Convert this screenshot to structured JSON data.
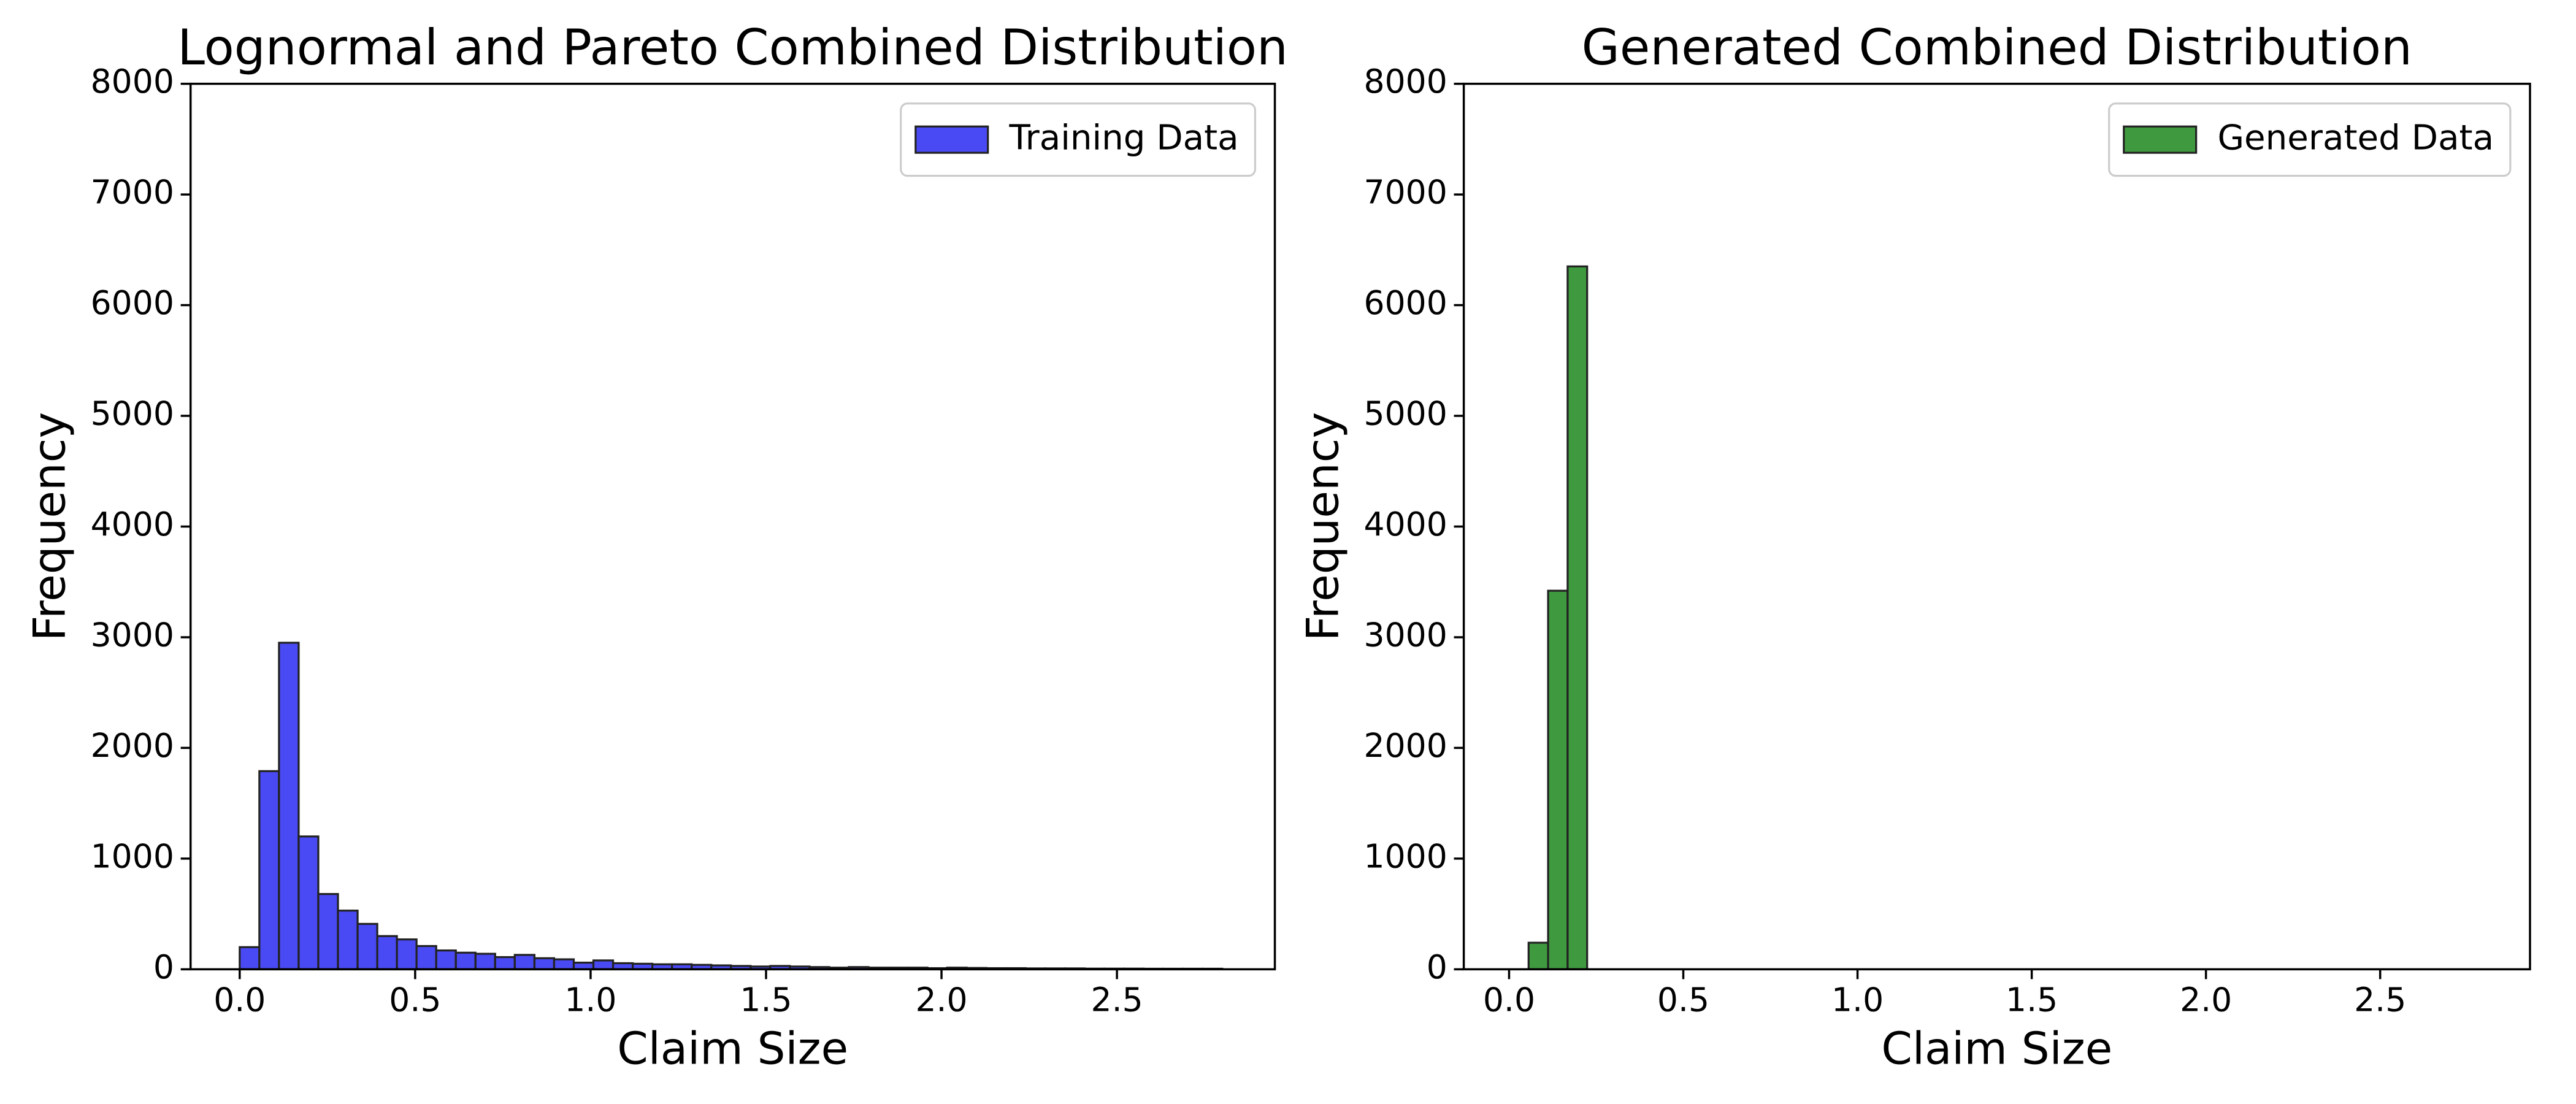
{
  "chart_data": [
    {
      "type": "histogram",
      "title": "Lognormal and Pareto Combined Distribution",
      "xlabel": "Claim Size",
      "ylabel": "Frequency",
      "bins": [
        0,
        0.056,
        0.112,
        0.168,
        0.224,
        0.28,
        0.336,
        0.392,
        0.448,
        0.504,
        0.56,
        0.616,
        0.672,
        0.728,
        0.784,
        0.84,
        0.896,
        0.952,
        1.008,
        1.064,
        1.12,
        1.176,
        1.232,
        1.288,
        1.344,
        1.4,
        1.456,
        1.512,
        1.568,
        1.624,
        1.68,
        1.736,
        1.792,
        1.848,
        1.904,
        1.96,
        2.016,
        2.072,
        2.128,
        2.184,
        2.24,
        2.296,
        2.352,
        2.408,
        2.464,
        2.52,
        2.576,
        2.632,
        2.688,
        2.744,
        2.8
      ],
      "series": [
        {
          "name": "Training Data",
          "color": "#4a4af5",
          "values": [
            200,
            1790,
            2950,
            1200,
            680,
            530,
            410,
            300,
            270,
            210,
            170,
            150,
            140,
            110,
            130,
            100,
            90,
            60,
            80,
            55,
            50,
            45,
            45,
            40,
            35,
            30,
            25,
            30,
            25,
            20,
            15,
            20,
            15,
            15,
            15,
            10,
            15,
            12,
            10,
            10,
            8,
            8,
            8,
            6,
            6,
            6,
            5,
            5,
            5,
            5
          ]
        }
      ],
      "xlim": [
        -0.14,
        2.95
      ],
      "xticks": [
        {
          "value": 0,
          "label": "0.0"
        },
        0.5,
        {
          "value": 1,
          "label": "1.0"
        },
        1.5,
        {
          "value": 2,
          "label": "2.0"
        },
        2.5
      ],
      "ylim": [
        0,
        8000
      ],
      "yticks": [
        0,
        1000,
        2000,
        3000,
        4000,
        5000,
        6000,
        7000,
        8000
      ],
      "legend": "upper right"
    },
    {
      "type": "histogram",
      "title": "Generated Combined Distribution",
      "xlabel": "Claim Size",
      "ylabel": "Frequency",
      "bins": [
        0,
        0.056,
        0.112,
        0.168,
        0.224,
        0.28,
        0.336,
        0.392,
        0.448,
        0.504,
        0.56,
        0.616,
        0.672,
        0.728,
        0.784,
        0.84,
        0.896,
        0.952,
        1.008,
        1.064,
        1.12,
        1.176,
        1.232,
        1.288,
        1.344,
        1.4,
        1.456,
        1.512,
        1.568,
        1.624,
        1.68,
        1.736,
        1.792,
        1.848,
        1.904,
        1.96,
        2.016,
        2.072,
        2.128,
        2.184,
        2.24,
        2.296,
        2.352,
        2.408,
        2.464,
        2.52,
        2.576,
        2.632,
        2.688,
        2.744,
        2.8
      ],
      "series": [
        {
          "name": "Generated Data",
          "color": "#3f9a3f",
          "values": [
            0,
            240,
            3420,
            6350,
            0,
            0,
            0,
            0,
            0,
            0,
            0,
            0,
            0,
            0,
            0,
            0,
            0,
            0,
            0,
            0,
            0,
            0,
            0,
            0,
            0,
            0,
            0,
            0,
            0,
            0,
            0,
            0,
            0,
            0,
            0,
            0,
            0,
            0,
            0,
            0,
            0,
            0,
            0,
            0,
            0,
            0,
            0,
            0,
            0,
            0
          ]
        }
      ],
      "xlim": [
        -0.13,
        2.93
      ],
      "xticks": [
        {
          "value": 0,
          "label": "0.0"
        },
        0.5,
        {
          "value": 1,
          "label": "1.0"
        },
        1.5,
        {
          "value": 2,
          "label": "2.0"
        },
        2.5
      ],
      "ylim": [
        0,
        8000
      ],
      "yticks": [
        0,
        1000,
        2000,
        3000,
        4000,
        5000,
        6000,
        7000,
        8000
      ],
      "legend": "upper right"
    }
  ]
}
